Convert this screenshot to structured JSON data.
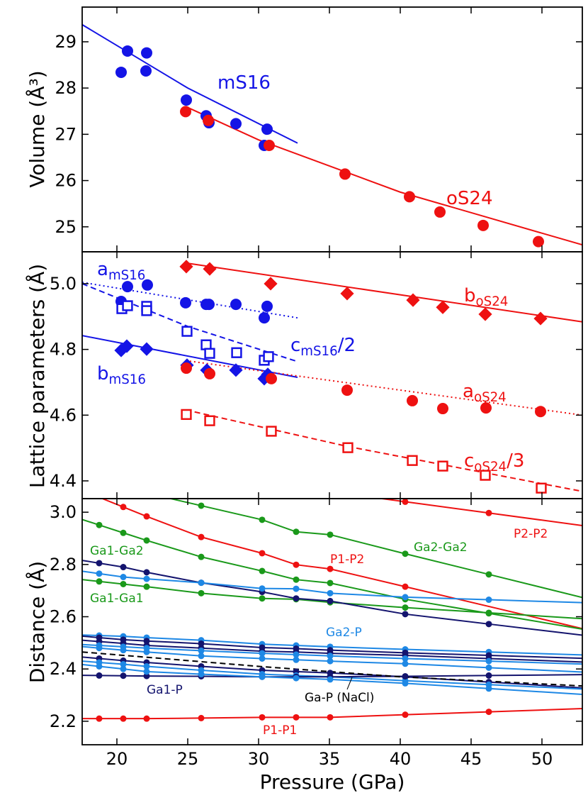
{
  "chart_data": [
    {
      "type": "scatter",
      "ylabel": "Volume (Å³)",
      "xlim": [
        17.55,
        52.85
      ],
      "xticks": [
        20,
        25,
        30,
        35,
        40,
        45,
        50
      ],
      "ylim": [
        24.46,
        29.75
      ],
      "yticks": [
        25,
        26,
        27,
        28,
        29
      ],
      "series": [
        {
          "name": "mS16",
          "color": "#1414e6",
          "marker": "circle",
          "dash": "none",
          "x": [
            20.3,
            20.75,
            22.1,
            22.05,
            24.9,
            26.3,
            26.5,
            28.4,
            30.4,
            30.6
          ],
          "values": [
            28.34,
            28.8,
            28.76,
            28.37,
            27.74,
            27.4,
            27.25,
            27.23,
            26.76,
            27.11
          ]
        },
        {
          "name": "oS24",
          "color": "#ee1111",
          "marker": "circle",
          "dash": "none",
          "x": [
            24.85,
            26.45,
            30.75,
            36.1,
            40.65,
            42.8,
            45.85,
            49.75
          ],
          "values": [
            27.49,
            27.3,
            26.76,
            26.14,
            25.65,
            25.32,
            25.03,
            24.68
          ]
        },
        {
          "color": "#1414e6",
          "marker": "none",
          "dash": "solid",
          "x": [
            17.55,
            25,
            32.75
          ],
          "values": [
            29.37,
            28.0,
            26.81
          ]
        },
        {
          "color": "#ee1111",
          "marker": "none",
          "dash": "solid",
          "x": [
            24.85,
            30,
            40,
            52.85
          ],
          "values": [
            27.6,
            26.88,
            25.75,
            24.61
          ]
        }
      ]
    },
    {
      "type": "scatter",
      "ylabel": "Lattice parameters (Å)",
      "xlim": [
        17.55,
        52.85
      ],
      "xticks": [
        20,
        25,
        30,
        35,
        40,
        45,
        50
      ],
      "ylim": [
        4.346,
        5.097
      ],
      "yticks": [
        4.4,
        4.6,
        4.8,
        {
          "value": 5,
          "label": "5.0"
        }
      ],
      "series": [
        {
          "name": "a",
          "subscript": "mS16",
          "color": "#1414e6",
          "marker": "circle",
          "dash": "none",
          "x": [
            20.3,
            20.75,
            22.15,
            24.85,
            26.3,
            26.5,
            28.4,
            30.4,
            30.6
          ],
          "values": [
            4.946,
            4.991,
            4.996,
            4.942,
            4.937,
            4.937,
            4.937,
            4.896,
            4.931
          ]
        },
        {
          "name": "c",
          "subscript": "mS16",
          "suffix": "/2",
          "color": "#1414e6",
          "marker": "square",
          "dash": "none",
          "x": [
            20.35,
            20.75,
            22.1,
            22.1,
            24.95,
            26.3,
            26.55,
            28.45,
            30.4,
            30.7
          ],
          "values": [
            4.924,
            4.933,
            4.931,
            4.918,
            4.855,
            4.814,
            4.788,
            4.79,
            4.767,
            4.778
          ]
        },
        {
          "name": "b",
          "subscript": "mS16",
          "color": "#1414e6",
          "marker": "diamond",
          "dash": "none",
          "x": [
            20.3,
            20.7,
            22.1,
            24.95,
            26.35,
            28.4,
            30.4,
            30.65
          ],
          "values": [
            4.797,
            4.81,
            4.801,
            4.752,
            4.737,
            4.737,
            4.711,
            4.724
          ]
        },
        {
          "name": "b",
          "subscript": "oS24",
          "color": "#ee1111",
          "marker": "diamond",
          "dash": "none",
          "x": [
            24.9,
            26.55,
            30.85,
            36.25,
            40.9,
            43.0,
            46.0,
            49.9
          ],
          "values": [
            5.052,
            5.045,
            5.0,
            4.97,
            4.95,
            4.928,
            4.907,
            4.894
          ]
        },
        {
          "name": "a",
          "subscript": "oS24",
          "color": "#ee1111",
          "marker": "circle",
          "dash": "none",
          "x": [
            24.9,
            26.55,
            30.9,
            36.25,
            40.85,
            43.0,
            46.05,
            49.9
          ],
          "values": [
            4.743,
            4.726,
            4.711,
            4.676,
            4.644,
            4.62,
            4.622,
            4.611
          ]
        },
        {
          "name": "c",
          "subscript": "oS24",
          "suffix": "/3",
          "color": "#ee1111",
          "marker": "square",
          "dash": "none",
          "x": [
            24.9,
            26.55,
            30.9,
            36.3,
            40.85,
            43.0,
            46.0,
            49.95
          ],
          "values": [
            4.602,
            4.583,
            4.551,
            4.501,
            4.462,
            4.445,
            4.417,
            4.378
          ]
        },
        {
          "color": "#1414e6",
          "marker": "none",
          "dash": "dotted",
          "x": [
            17.55,
            32.75
          ],
          "values": [
            5.004,
            4.896
          ]
        },
        {
          "color": "#1414e6",
          "marker": "none",
          "dash": "dashed",
          "x": [
            17.55,
            25,
            32.75
          ],
          "values": [
            5.0,
            4.87,
            4.763
          ]
        },
        {
          "color": "#1414e6",
          "marker": "none",
          "dash": "solid",
          "x": [
            17.55,
            32.75
          ],
          "values": [
            4.842,
            4.715
          ]
        },
        {
          "color": "#ee1111",
          "marker": "none",
          "dash": "solid",
          "x": [
            24.85,
            52.85
          ],
          "values": [
            5.063,
            4.884
          ]
        },
        {
          "color": "#ee1111",
          "marker": "none",
          "dash": "dotted",
          "x": [
            24.85,
            52.85
          ],
          "values": [
            4.766,
            4.6
          ]
        },
        {
          "color": "#ee1111",
          "marker": "none",
          "dash": "dashed",
          "x": [
            24.85,
            36.25,
            52.85
          ],
          "values": [
            4.616,
            4.505,
            4.368
          ]
        }
      ]
    },
    {
      "type": "line",
      "ylabel": "Distance (Å)",
      "xlabel": "Pressure (GPa)",
      "extend": true,
      "xlim": [
        17.55,
        52.85
      ],
      "xticks": [
        20,
        25,
        30,
        35,
        40,
        45,
        50
      ],
      "ylim": [
        2.11,
        3.052
      ],
      "yticks": [
        2.2,
        2.4,
        2.6,
        2.8,
        {
          "value": 3,
          "label": "3.0"
        }
      ],
      "series": [
        {
          "name": "P1-P1",
          "color": "#ee1111",
          "marker": "circle",
          "dash": "solid",
          "x": [
            18.75,
            20.45,
            22.1,
            25.95,
            30.25,
            32.65,
            35.05,
            40.35,
            46.25
          ],
          "values": [
            2.21,
            2.21,
            2.21,
            2.212,
            2.215,
            2.215,
            2.215,
            2.225,
            2.236
          ]
        },
        {
          "name": "P1-P2",
          "color": "#ee1111",
          "marker": "circle",
          "dash": "solid",
          "x": [
            20.45,
            22.1,
            25.95,
            30.25,
            32.65,
            35.05,
            40.35
          ],
          "values": [
            3.02,
            2.984,
            2.905,
            2.843,
            2.799,
            2.783,
            2.715
          ]
        },
        {
          "name": "P2-P2",
          "color": "#ee1111",
          "marker": "circle",
          "dash": "solid",
          "x": [
            40.35,
            46.25
          ],
          "values": [
            3.04,
            2.997
          ]
        },
        {
          "name": "Ga2-Ga2",
          "color": "#1a991a",
          "marker": "circle",
          "dash": "solid",
          "x": [
            25.95,
            30.25,
            32.65,
            35.05,
            40.35,
            46.25
          ],
          "values": [
            3.025,
            2.971,
            2.925,
            2.914,
            2.841,
            2.762
          ]
        },
        {
          "name": "Ga1-Ga2",
          "color": "#1a991a",
          "marker": "circle",
          "dash": "solid",
          "x": [
            18.75,
            20.45,
            22.1,
            25.95,
            30.25,
            32.65,
            35.05,
            40.35,
            46.25
          ],
          "values": [
            2.951,
            2.921,
            2.892,
            2.829,
            2.775,
            2.742,
            2.729,
            2.667,
            2.613
          ]
        },
        {
          "name": "Ga1-Ga1",
          "color": "#1a991a",
          "marker": "circle",
          "dash": "solid",
          "x": [
            18.75,
            20.45,
            22.1,
            25.95,
            30.25,
            32.65,
            35.05,
            40.35,
            46.25
          ],
          "values": [
            2.735,
            2.725,
            2.715,
            2.69,
            2.67,
            2.667,
            2.655,
            2.635,
            2.615
          ]
        },
        {
          "color": "#14146e",
          "marker": "circle",
          "dash": "solid",
          "x": [
            18.75,
            20.45,
            22.1,
            25.95,
            30.25,
            32.65,
            35.05,
            40.35,
            46.25
          ],
          "values": [
            2.805,
            2.79,
            2.77,
            2.73,
            2.695,
            2.67,
            2.66,
            2.61,
            2.572
          ]
        },
        {
          "color": "#1e88e5",
          "marker": "circle",
          "dash": "solid",
          "x": [
            18.75,
            20.45,
            22.1,
            25.95,
            30.25,
            32.65,
            35.05,
            40.35,
            46.25
          ],
          "values": [
            2.765,
            2.752,
            2.745,
            2.73,
            2.708,
            2.707,
            2.69,
            2.675,
            2.665
          ]
        },
        {
          "name": "Ga2-P",
          "color": "#1e88e5",
          "marker": "circle",
          "dash": "solid",
          "x": [
            18.75,
            20.45,
            22.1,
            25.95,
            30.25,
            32.65,
            35.05,
            40.35,
            46.25
          ],
          "values": [
            2.528,
            2.525,
            2.52,
            2.51,
            2.495,
            2.49,
            2.485,
            2.475,
            2.465
          ]
        },
        {
          "color": "#14146e",
          "marker": "circle",
          "dash": "solid",
          "x": [
            18.75,
            20.45,
            22.1,
            25.95,
            30.25,
            32.65,
            35.05,
            40.35,
            46.25
          ],
          "values": [
            2.52,
            2.512,
            2.507,
            2.497,
            2.482,
            2.478,
            2.472,
            2.462,
            2.452
          ]
        },
        {
          "color": "#14146e",
          "marker": "circle",
          "dash": "solid",
          "x": [
            18.75,
            20.45,
            22.1,
            25.95,
            30.25,
            32.65,
            35.05,
            40.35,
            46.25
          ],
          "values": [
            2.505,
            2.498,
            2.49,
            2.48,
            2.468,
            2.465,
            2.46,
            2.452,
            2.44
          ]
        },
        {
          "color": "#1e88e5",
          "marker": "circle",
          "dash": "solid",
          "x": [
            18.75,
            20.45,
            22.1,
            25.95,
            30.25,
            32.65,
            35.05,
            40.35,
            46.25
          ],
          "values": [
            2.49,
            2.485,
            2.48,
            2.47,
            2.46,
            2.455,
            2.45,
            2.44,
            2.43
          ]
        },
        {
          "color": "#1e88e5",
          "marker": "circle",
          "dash": "solid",
          "x": [
            18.75,
            20.45,
            22.1,
            25.95,
            30.25,
            32.65,
            35.05,
            40.35,
            46.25
          ],
          "values": [
            2.48,
            2.472,
            2.465,
            2.45,
            2.44,
            2.435,
            2.43,
            2.42,
            2.405
          ]
        },
        {
          "color": "#14146e",
          "marker": "circle",
          "dash": "solid",
          "x": [
            18.75,
            20.45,
            22.1,
            25.95,
            30.25,
            32.65,
            35.05,
            40.35,
            46.25
          ],
          "values": [
            2.44,
            2.432,
            2.425,
            2.41,
            2.395,
            2.39,
            2.385,
            2.37,
            2.35
          ]
        },
        {
          "color": "#1e88e5",
          "marker": "circle",
          "dash": "solid",
          "x": [
            18.75,
            20.45,
            22.1,
            25.95,
            30.25,
            32.65,
            35.05,
            40.35,
            46.25
          ],
          "values": [
            2.425,
            2.418,
            2.41,
            2.395,
            2.38,
            2.375,
            2.37,
            2.355,
            2.34
          ]
        },
        {
          "name": "Ga1-P",
          "color": "#14146e",
          "marker": "circle",
          "dash": "solid",
          "x": [
            18.75,
            20.45,
            22.1,
            25.95,
            30.25,
            32.65,
            35.05,
            40.35,
            46.25
          ],
          "values": [
            2.375,
            2.374,
            2.373,
            2.372,
            2.37,
            2.37,
            2.37,
            2.372,
            2.375
          ]
        },
        {
          "color": "#1e88e5",
          "marker": "circle",
          "dash": "solid",
          "x": [
            18.75,
            20.45,
            22.1,
            25.95,
            30.25,
            32.65,
            35.05,
            40.35,
            46.25
          ],
          "values": [
            2.41,
            2.4,
            2.39,
            2.38,
            2.37,
            2.365,
            2.36,
            2.345,
            2.325
          ]
        },
        {
          "name": "Ga-P (NaCl)",
          "color": "#000000",
          "marker": "none",
          "dash": "dashed",
          "x": [
            17.55,
            30,
            40,
            52.85
          ],
          "values": [
            2.465,
            2.41,
            2.37,
            2.335
          ]
        }
      ]
    }
  ]
}
